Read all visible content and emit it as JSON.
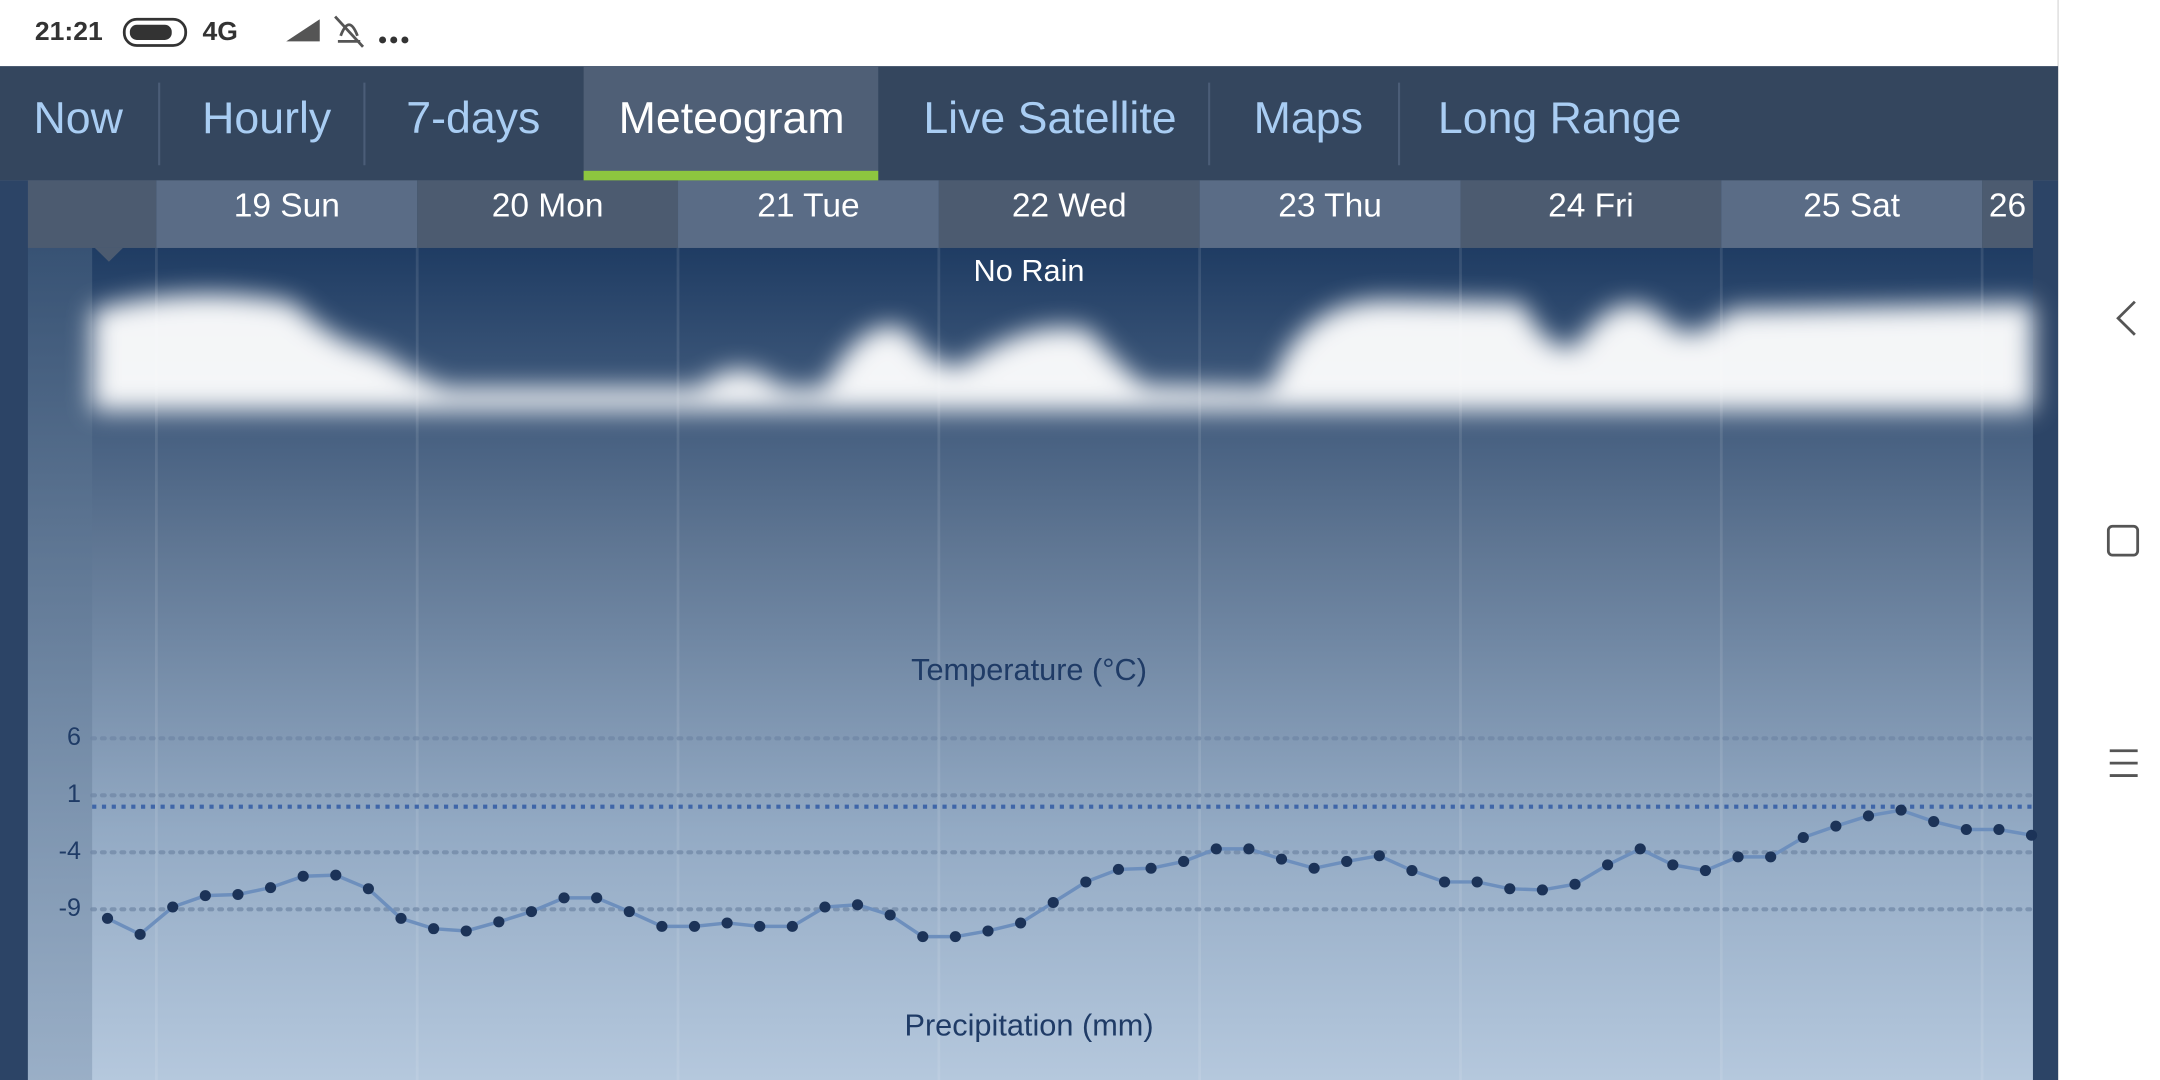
{
  "status_bar": {
    "time": "21:21",
    "network": "4G"
  },
  "tabs": [
    "Now",
    "Hourly",
    "7-days",
    "Meteogram",
    "Live Satellite",
    "Maps",
    "Long Range"
  ],
  "days": [
    "19 Sun",
    "20 Mon",
    "21 Tue",
    "22 Wed",
    "23 Thu",
    "24 Fri",
    "25 Sat",
    "26"
  ],
  "rain_label": "No Rain",
  "precipitation_label": "Precipitation (mm)",
  "chart_data": {
    "type": "line",
    "title": "Temperature (°C)",
    "ylim": [
      -12,
      6
    ],
    "yticks": [
      6,
      1,
      -4,
      -9
    ],
    "freezing_line": 0,
    "grid": true,
    "series": [
      {
        "color": "#1c3358",
        "values": [
          -9.8,
          -11.2,
          -8.8,
          -7.8,
          -7.7,
          -7.1,
          -6.1,
          -6.0,
          -7.2,
          -9.8,
          -10.7,
          -10.9,
          -10.1,
          -9.2,
          -8.0,
          -8.0,
          -9.2,
          -10.5,
          -10.5,
          -10.2,
          -10.5,
          -10.5,
          -8.8,
          -8.6,
          -9.5,
          -11.4,
          -11.4,
          -10.9,
          -10.2,
          -8.4,
          -6.6,
          -5.5,
          -5.4,
          -4.8,
          -3.7,
          -3.7,
          -4.6,
          -5.4,
          -4.8,
          -4.3,
          -5.6,
          -6.6,
          -6.6,
          -7.2,
          -7.3,
          -6.8,
          -5.1,
          -3.7,
          -5.1,
          -5.6,
          -4.4,
          -4.4,
          -2.7,
          -1.7,
          -0.8,
          -0.3,
          -1.3,
          -2.0,
          -2.0,
          -2.5
        ]
      }
    ]
  }
}
